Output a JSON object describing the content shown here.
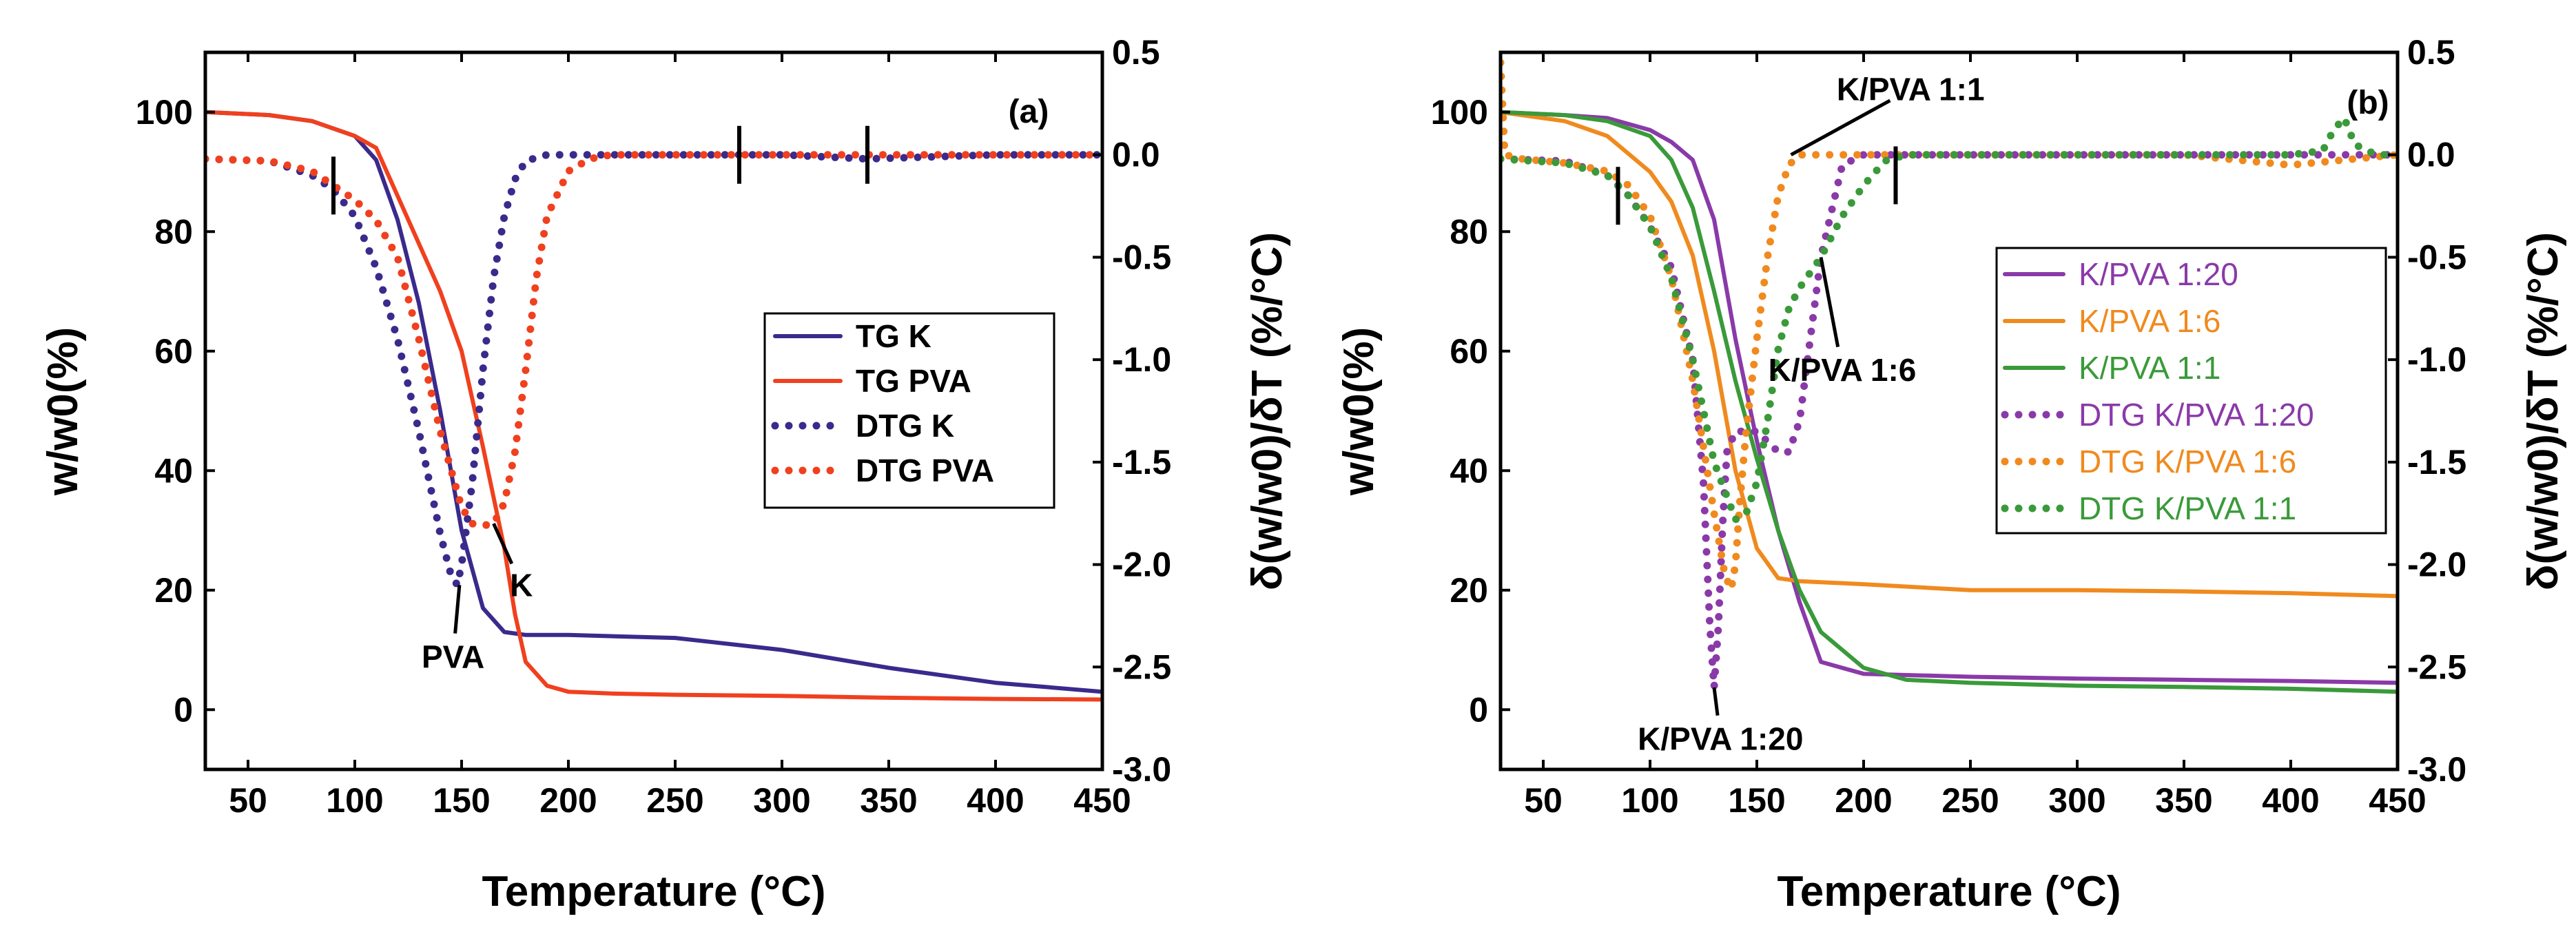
{
  "chart_data": [
    {
      "type": "line",
      "panel_label": "(a)",
      "xlabel": "Temperature (°C)",
      "ylabel": "w/w0(%)",
      "y2label": "δ(w/w0)/δT (%/°C)",
      "xlim": [
        30,
        450
      ],
      "ylim": [
        -10,
        110
      ],
      "y2lim": [
        -3.0,
        0.5
      ],
      "xticks": [
        "50",
        "100",
        "150",
        "200",
        "250",
        "300",
        "350",
        "400",
        "450"
      ],
      "yticks": [
        "0",
        "20",
        "40",
        "60",
        "80",
        "100"
      ],
      "y2ticks": [
        "0.5",
        "0.0",
        "-0.5",
        "-1.0",
        "-1.5",
        "-2.0",
        "-2.5",
        "-3.0"
      ],
      "legend_position": "center-right",
      "series": [
        {
          "name": "TG K",
          "axis": "left",
          "color": "#3a2a8c",
          "style": "solid",
          "x": [
            30,
            60,
            80,
            100,
            110,
            120,
            130,
            140,
            150,
            160,
            170,
            180,
            200,
            250,
            300,
            350,
            400,
            450
          ],
          "y": [
            100,
            99.5,
            98.5,
            96,
            92,
            82,
            68,
            50,
            30,
            17,
            13,
            12.5,
            12.5,
            12,
            10,
            7,
            4.5,
            3
          ]
        },
        {
          "name": "TG PVA",
          "axis": "left",
          "color": "#f0401e",
          "style": "solid",
          "x": [
            30,
            60,
            80,
            100,
            110,
            120,
            130,
            140,
            150,
            160,
            170,
            175,
            180,
            190,
            200,
            220,
            250,
            300,
            350,
            400,
            450
          ],
          "y": [
            100,
            99.5,
            98.5,
            96,
            94,
            86,
            78,
            70,
            60,
            44,
            27,
            16,
            8,
            4,
            3,
            2.7,
            2.5,
            2.3,
            2,
            1.8,
            1.7
          ]
        },
        {
          "name": "DTG K",
          "axis": "right",
          "color": "#3a2a8c",
          "style": "dotted",
          "x": [
            30,
            60,
            80,
            90,
            100,
            110,
            120,
            130,
            140,
            145,
            148,
            150,
            155,
            160,
            165,
            170,
            175,
            180,
            190,
            200,
            250,
            300,
            340,
            400,
            450
          ],
          "y": [
            -0.02,
            -0.03,
            -0.1,
            -0.17,
            -0.3,
            -0.55,
            -0.9,
            -1.35,
            -1.85,
            -2.05,
            -2.1,
            -2.0,
            -1.6,
            -1.05,
            -0.6,
            -0.3,
            -0.12,
            -0.03,
            0.0,
            0.0,
            0.0,
            0.0,
            -0.02,
            0.0,
            0.0
          ]
        },
        {
          "name": "DTG PVA",
          "axis": "right",
          "color": "#f0401e",
          "style": "dotted",
          "x": [
            30,
            60,
            80,
            90,
            100,
            110,
            120,
            130,
            140,
            150,
            155,
            160,
            165,
            170,
            175,
            180,
            185,
            190,
            200,
            210,
            220,
            250,
            300,
            350,
            400,
            450
          ],
          "y": [
            -0.02,
            -0.03,
            -0.08,
            -0.15,
            -0.22,
            -0.32,
            -0.5,
            -0.9,
            -1.35,
            -1.72,
            -1.8,
            -1.81,
            -1.8,
            -1.7,
            -1.45,
            -1.05,
            -0.6,
            -0.3,
            -0.08,
            -0.02,
            0.0,
            0.0,
            0.0,
            0.0,
            0.0,
            0.0
          ]
        }
      ],
      "markers": [
        {
          "x": 90,
          "axis": "right",
          "y": -0.15
        },
        {
          "x": 280,
          "axis": "right",
          "y": 0.0
        },
        {
          "x": 340,
          "axis": "right",
          "y": 0.0
        }
      ],
      "annotations": [
        {
          "text": "PVA",
          "x_at": 149,
          "y_at": -2.1,
          "label_x": 146,
          "label_y": -2.45
        },
        {
          "text": "K",
          "x_at": 165,
          "y_at": -1.8,
          "label_x": 178,
          "label_y": -2.1
        }
      ]
    },
    {
      "type": "line",
      "panel_label": "(b)",
      "xlabel": "Temperature (°C)",
      "ylabel": "w/w0(%)",
      "y2label": "δ(w/w0)/δT (%/°C)",
      "xlim": [
        30,
        450
      ],
      "ylim": [
        -10,
        110
      ],
      "y2lim": [
        -3.0,
        0.5
      ],
      "xticks": [
        "50",
        "100",
        "150",
        "200",
        "250",
        "300",
        "350",
        "400",
        "450"
      ],
      "yticks": [
        "0",
        "20",
        "40",
        "60",
        "80",
        "100"
      ],
      "y2ticks": [
        "0.5",
        "0.0",
        "-0.5",
        "-1.0",
        "-1.5",
        "-2.0",
        "-2.5",
        "-3.0"
      ],
      "legend_position": "center-right",
      "series": [
        {
          "name": "K/PVA 1:20",
          "axis": "left",
          "color": "#8a3aa8",
          "style": "solid",
          "x": [
            30,
            60,
            80,
            100,
            110,
            120,
            130,
            140,
            150,
            160,
            170,
            180,
            200,
            250,
            300,
            350,
            400,
            450
          ],
          "y": [
            100,
            99.5,
            99,
            97,
            95,
            92,
            82,
            62,
            45,
            30,
            18,
            8,
            6,
            5.5,
            5.2,
            5,
            4.8,
            4.5
          ]
        },
        {
          "name": "K/PVA 1:6",
          "axis": "left",
          "color": "#f08a1e",
          "style": "solid",
          "x": [
            30,
            60,
            80,
            100,
            110,
            120,
            130,
            140,
            150,
            160,
            170,
            200,
            250,
            300,
            350,
            400,
            450
          ],
          "y": [
            100,
            98.5,
            96,
            90,
            85,
            76,
            60,
            40,
            27,
            22,
            21.5,
            21,
            20,
            20,
            19.8,
            19.5,
            19
          ]
        },
        {
          "name": "K/PVA 1:1",
          "axis": "left",
          "color": "#3a9a3a",
          "style": "solid",
          "x": [
            30,
            60,
            80,
            100,
            110,
            120,
            130,
            140,
            150,
            160,
            170,
            180,
            200,
            220,
            250,
            300,
            350,
            400,
            450
          ],
          "y": [
            100,
            99.5,
            98.5,
            96,
            92,
            84,
            70,
            55,
            42,
            30,
            20,
            13,
            7,
            5,
            4.5,
            4,
            3.8,
            3.5,
            3
          ]
        },
        {
          "name": "DTG K/PVA 1:20",
          "axis": "right",
          "color": "#8a3aa8",
          "style": "dotted",
          "x": [
            30,
            60,
            80,
            90,
            100,
            110,
            120,
            125,
            128,
            130,
            132,
            134,
            136,
            140,
            150,
            160,
            165,
            170,
            175,
            180,
            190,
            200,
            250,
            300,
            350,
            400,
            450
          ],
          "y": [
            -0.02,
            -0.03,
            -0.1,
            -0.2,
            -0.35,
            -0.55,
            -1.0,
            -1.6,
            -2.3,
            -2.6,
            -2.3,
            -1.8,
            -1.45,
            -1.35,
            -1.35,
            -1.45,
            -1.45,
            -1.3,
            -0.9,
            -0.5,
            -0.05,
            0.0,
            0.0,
            0.0,
            0.0,
            0.0,
            0.0
          ]
        },
        {
          "name": "DTG K/PVA 1:6",
          "axis": "right",
          "color": "#f08a1e",
          "style": "dotted",
          "x": [
            30,
            32,
            40,
            60,
            80,
            90,
            100,
            110,
            120,
            130,
            135,
            138,
            140,
            142,
            145,
            150,
            155,
            160,
            165,
            170,
            180,
            200,
            250,
            300,
            350,
            400,
            450
          ],
          "y": [
            0.45,
            0.0,
            -0.02,
            -0.04,
            -0.08,
            -0.15,
            -0.3,
            -0.6,
            -1.1,
            -1.75,
            -2.05,
            -2.12,
            -2.0,
            -1.7,
            -1.35,
            -0.9,
            -0.5,
            -0.2,
            -0.05,
            0.0,
            0.0,
            0.0,
            0.0,
            0.0,
            0.0,
            -0.05,
            0.0
          ]
        },
        {
          "name": "DTG K/PVA 1:1",
          "axis": "right",
          "color": "#3a9a3a",
          "style": "dotted",
          "x": [
            30,
            60,
            80,
            90,
            100,
            110,
            120,
            130,
            140,
            145,
            150,
            155,
            160,
            165,
            170,
            180,
            190,
            200,
            210,
            220,
            250,
            300,
            350,
            400,
            415,
            420,
            425,
            430,
            440,
            450
          ],
          "y": [
            -0.02,
            -0.04,
            -0.1,
            -0.2,
            -0.35,
            -0.6,
            -1.0,
            -1.5,
            -1.78,
            -1.75,
            -1.6,
            -1.3,
            -0.95,
            -0.75,
            -0.65,
            -0.5,
            -0.3,
            -0.15,
            -0.03,
            0.0,
            0.0,
            0.0,
            0.0,
            0.0,
            0.02,
            0.12,
            0.18,
            0.05,
            0.0,
            0.0
          ]
        }
      ],
      "markers": [
        {
          "x": 85,
          "axis": "right",
          "y": -0.2
        },
        {
          "x": 215,
          "axis": "right",
          "y": -0.1
        }
      ],
      "annotations": [
        {
          "text": "K/PVA 1:1",
          "x_at": 166,
          "y_at": 0.0,
          "label_x": 222,
          "label_y": 0.32
        },
        {
          "text": "K/PVA 1:6",
          "x_at": 180,
          "y_at": -0.5,
          "label_x": 190,
          "label_y": -1.05
        },
        {
          "text": "K/PVA 1:20",
          "x_at": 130,
          "y_at": -2.6,
          "label_x": 133,
          "label_y": -2.85
        }
      ]
    }
  ]
}
